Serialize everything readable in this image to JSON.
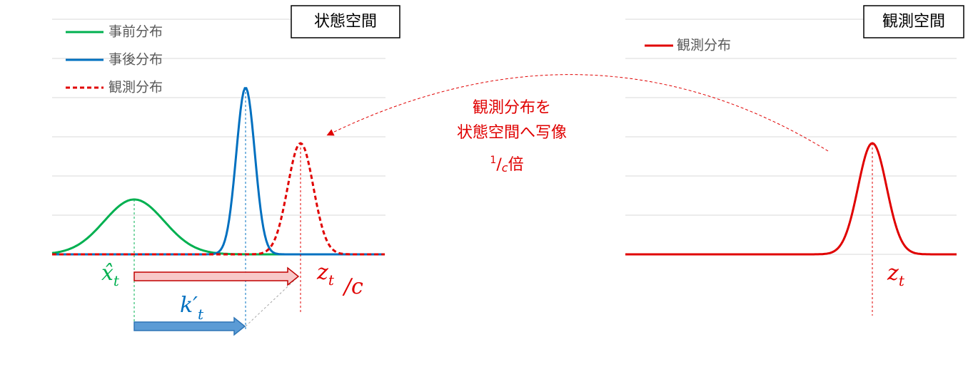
{
  "left": {
    "box_title": "状態空間",
    "legend": [
      "事前分布",
      "事後分布",
      "観測分布"
    ]
  },
  "right": {
    "box_title": "観測空間",
    "legend": [
      "観測分布"
    ]
  },
  "annotation": {
    "lines": [
      "観測分布を",
      "状態空間へ写像"
    ],
    "ratio": {
      "num": "1",
      "slash": "/",
      "den": "c",
      "suffix": "倍"
    }
  },
  "math": {
    "x_hat": {
      "base": "x̂",
      "sub": "t"
    },
    "k_prime": {
      "base": "k′",
      "sub": "t"
    },
    "z_over_c": {
      "base": "z",
      "sub": "t",
      "div": "/c"
    },
    "z": {
      "base": "z",
      "sub": "t"
    }
  }
}
